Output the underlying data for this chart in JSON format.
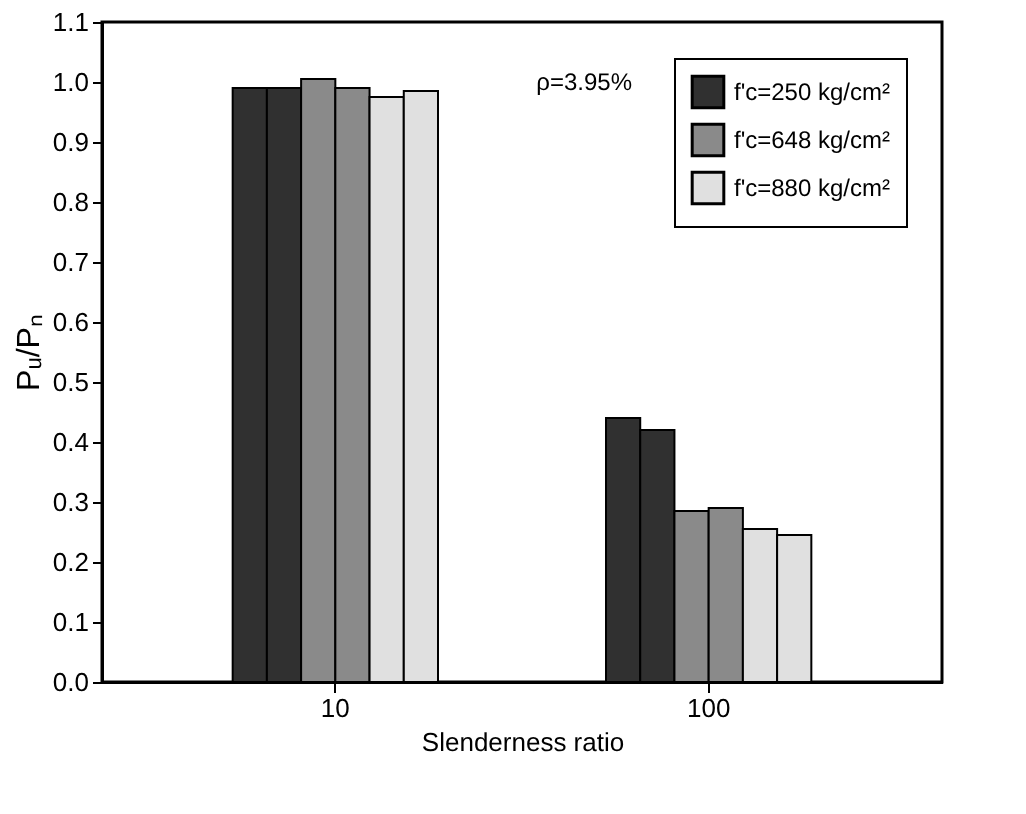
{
  "chart_data": {
    "type": "bar",
    "xlabel": "Slenderness ratio",
    "ylabel": "Pᵤ/Pₙ",
    "categories": [
      "10",
      "100"
    ],
    "series": [
      {
        "name": "f'c=250 kg/cm²",
        "color": "#303030",
        "values": [
          0.99,
          0.44
        ]
      },
      {
        "color": "#303030",
        "values": [
          0.99,
          0.42
        ]
      },
      {
        "name": "f'c=648 kg/cm²",
        "color": "#8a8a8a",
        "values": [
          1.005,
          0.285
        ]
      },
      {
        "color": "#8a8a8a",
        "values": [
          0.99,
          0.29
        ]
      },
      {
        "name": "f'c=880 kg/cm²",
        "color": "#e0e0e0",
        "values": [
          0.975,
          0.255
        ]
      },
      {
        "color": "#e0e0e0",
        "values": [
          0.985,
          0.245
        ]
      }
    ],
    "ylim": [
      0,
      1.1
    ],
    "yticks": [
      {
        "value": 0,
        "label": "0.0"
      },
      0.1,
      0.2,
      0.3,
      0.4,
      0.5,
      0.6,
      0.7,
      0.8,
      0.9,
      {
        "value": 1.0,
        "label": "1.0"
      },
      1.1
    ],
    "annotations": [
      "ρ=3.95%"
    ],
    "legend": "top right",
    "grid": false
  }
}
